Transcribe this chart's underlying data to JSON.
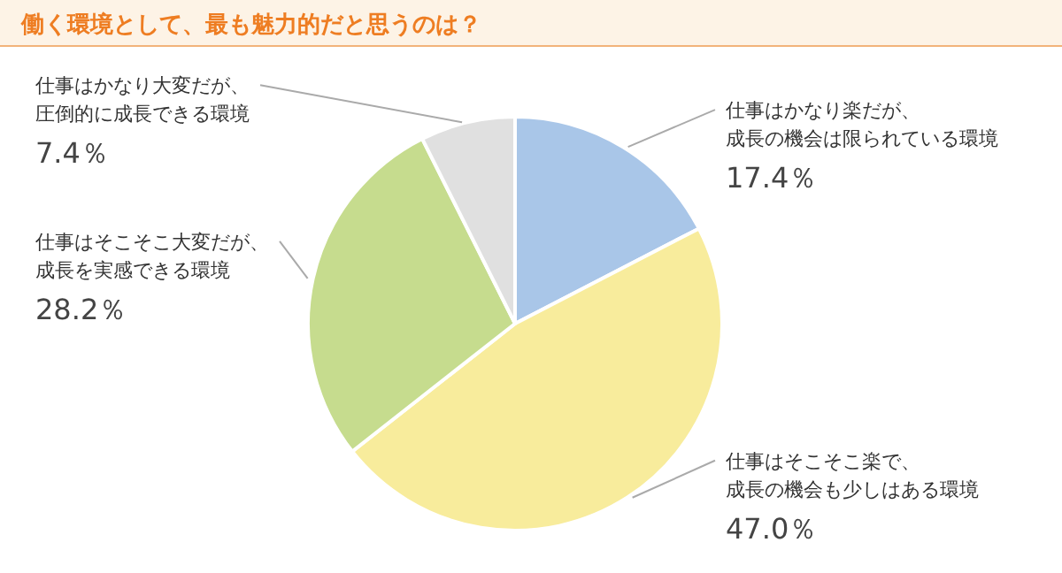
{
  "chart_data": {
    "type": "pie",
    "title": "働く環境として、最も魅力的だと思うのは？",
    "categories": [
      "仕事はかなり楽だが、成長の機会は限られている環境",
      "仕事はそこそこ楽で、成長の機会も少しはある環境",
      "仕事はそこそこ大変だが、成長を実感できる環境",
      "仕事はかなり大変だが、圧倒的に成長できる環境"
    ],
    "values": [
      17.4,
      47.0,
      28.2,
      7.4
    ],
    "colors": [
      "#a9c6e8",
      "#f8ec9c",
      "#c6dc8e",
      "#e0e0e0"
    ],
    "value_labels": [
      "17.4％",
      "47.0％",
      "28.2％",
      "7.4％"
    ]
  }
}
